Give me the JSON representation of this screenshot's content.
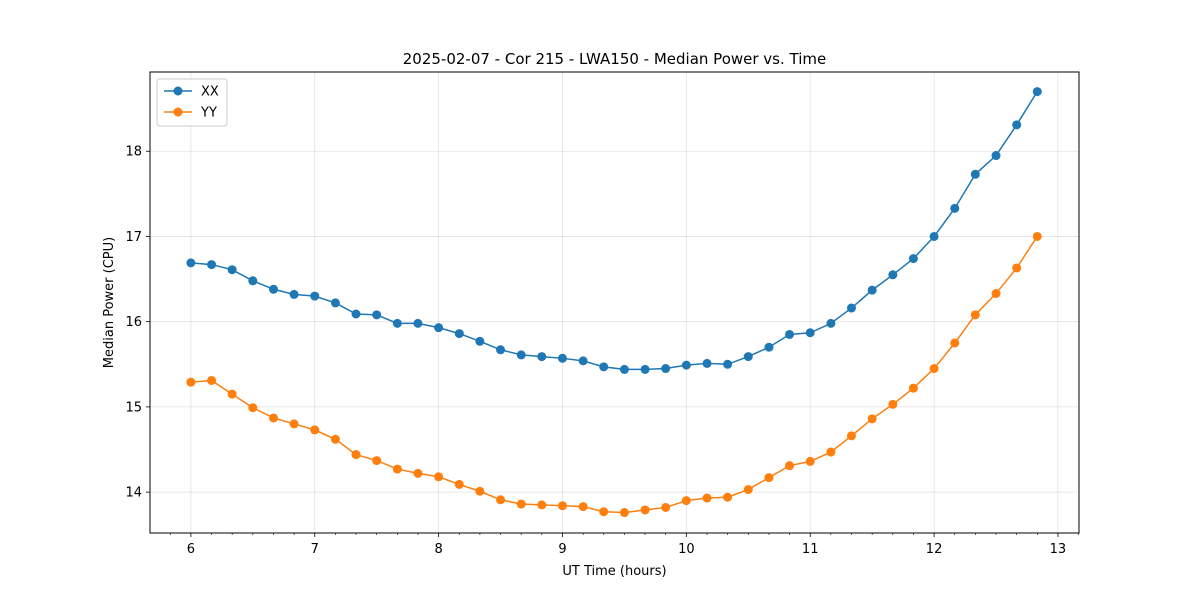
{
  "chart_data": {
    "type": "line",
    "title": "2025-02-07 - Cor 215 - LWA150 - Median Power vs. Time",
    "xlabel": "UT Time (hours)",
    "ylabel": "Median Power (CPU)",
    "xlim": [
      5.67,
      13.17
    ],
    "ylim": [
      13.52,
      18.93
    ],
    "xticks": [
      6,
      7,
      8,
      9,
      10,
      11,
      12,
      13
    ],
    "yticks": [
      14,
      15,
      16,
      17,
      18
    ],
    "grid": true,
    "legend_position": "top-left",
    "x": [
      6.0,
      6.167,
      6.333,
      6.5,
      6.667,
      6.833,
      7.0,
      7.167,
      7.333,
      7.5,
      7.667,
      7.833,
      8.0,
      8.167,
      8.333,
      8.5,
      8.667,
      8.833,
      9.0,
      9.167,
      9.333,
      9.5,
      9.667,
      9.833,
      10.0,
      10.167,
      10.333,
      10.5,
      10.667,
      10.833,
      11.0,
      11.167,
      11.333,
      11.5,
      11.667,
      11.833,
      12.0,
      12.167,
      12.333,
      12.5,
      12.667,
      12.833
    ],
    "series": [
      {
        "name": "XX",
        "color": "#1f77b4",
        "values": [
          16.69,
          16.67,
          16.61,
          16.48,
          16.38,
          16.32,
          16.3,
          16.22,
          16.09,
          16.08,
          15.98,
          15.98,
          15.93,
          15.86,
          15.77,
          15.67,
          15.61,
          15.59,
          15.57,
          15.54,
          15.47,
          15.44,
          15.44,
          15.45,
          15.49,
          15.51,
          15.5,
          15.59,
          15.7,
          15.85,
          15.87,
          15.98,
          16.16,
          16.37,
          16.55,
          16.74,
          17.0,
          17.33,
          17.73,
          17.95,
          18.31,
          18.7
        ]
      },
      {
        "name": "YY",
        "color": "#ff7f0e",
        "values": [
          15.29,
          15.31,
          15.15,
          14.99,
          14.87,
          14.8,
          14.73,
          14.62,
          14.44,
          14.37,
          14.27,
          14.22,
          14.18,
          14.09,
          14.01,
          13.91,
          13.86,
          13.85,
          13.84,
          13.83,
          13.77,
          13.76,
          13.79,
          13.82,
          13.9,
          13.93,
          13.94,
          14.03,
          14.17,
          14.31,
          14.36,
          14.47,
          14.66,
          14.86,
          15.03,
          15.22,
          15.45,
          15.75,
          16.08,
          16.33,
          16.63,
          17.0
        ]
      }
    ]
  }
}
